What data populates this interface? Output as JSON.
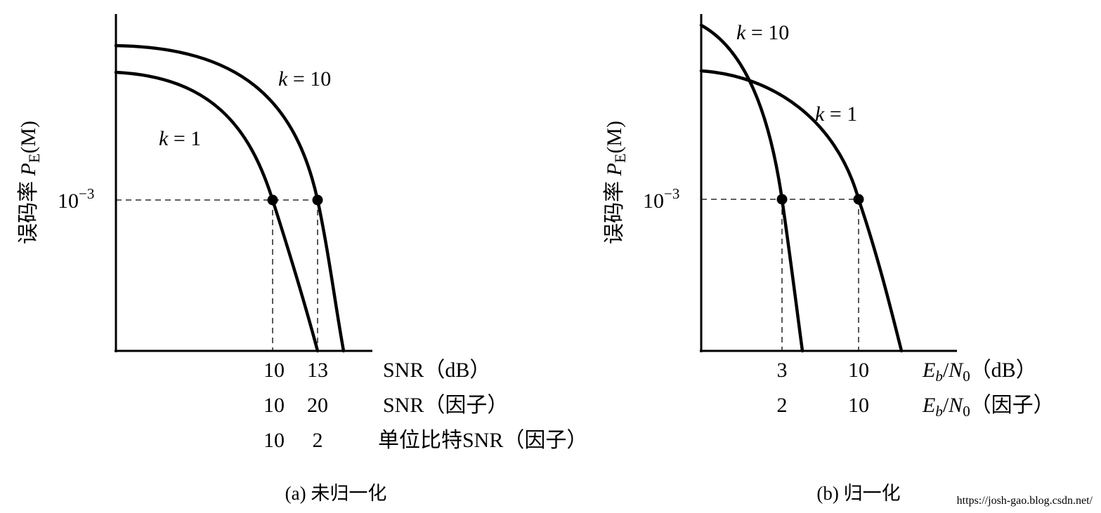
{
  "chart_data": [
    {
      "type": "line",
      "caption": "(a) 未归一化",
      "ylabel": "误码率 P_E(M)",
      "ylabel_parts": {
        "prefix": "误码率",
        "symbol": "P",
        "sub": "E",
        "arg": "(M)"
      },
      "y_marker": {
        "base": "10",
        "exp": "−3",
        "value": 0.001
      },
      "x_rows": [
        {
          "label": "SNR（dB）",
          "ticks": [
            {
              "value": "10",
              "label": "10"
            },
            {
              "value": "13",
              "label": "13"
            }
          ]
        },
        {
          "label": "SNR（因子）",
          "ticks": [
            {
              "value": "10",
              "label": "10"
            },
            {
              "value": "20",
              "label": "20"
            }
          ]
        },
        {
          "label": "单位比特SNR（因子）",
          "ticks": [
            {
              "value": "10",
              "label": "10"
            },
            {
              "value": "2",
              "label": "2"
            }
          ]
        }
      ],
      "series": [
        {
          "name": "k = 1",
          "var": "k",
          "eq": " = 1",
          "marker_x_db": 10
        },
        {
          "name": "k = 10",
          "var": "k",
          "eq": " = 10",
          "marker_x_db": 13
        }
      ]
    },
    {
      "type": "line",
      "caption": "(b) 归一化",
      "ylabel": "误码率 P_E(M)",
      "ylabel_parts": {
        "prefix": "误码率",
        "symbol": "P",
        "sub": "E",
        "arg": "(M)"
      },
      "y_marker": {
        "base": "10",
        "exp": "−3",
        "value": 0.001
      },
      "x_rows": [
        {
          "label": "E_b/N_0（dB）",
          "sym": {
            "a": "E",
            "as": "b",
            "b": "N",
            "bs": "0"
          },
          "suffix": "（dB）",
          "ticks": [
            {
              "value": "3",
              "label": "3"
            },
            {
              "value": "10",
              "label": "10"
            }
          ]
        },
        {
          "label": "E_b/N_0（因子）",
          "sym": {
            "a": "E",
            "as": "b",
            "b": "N",
            "bs": "0"
          },
          "suffix": "（因子）",
          "ticks": [
            {
              "value": "2",
              "label": "2"
            },
            {
              "value": "10",
              "label": "10"
            }
          ]
        }
      ],
      "series": [
        {
          "name": "k = 10",
          "var": "k",
          "eq": " = 10",
          "marker_x_db": 3
        },
        {
          "name": "k = 1",
          "var": "k",
          "eq": " = 1",
          "marker_x_db": 10
        }
      ]
    }
  ],
  "watermark": "https://josh-gao.blog.csdn.net/"
}
